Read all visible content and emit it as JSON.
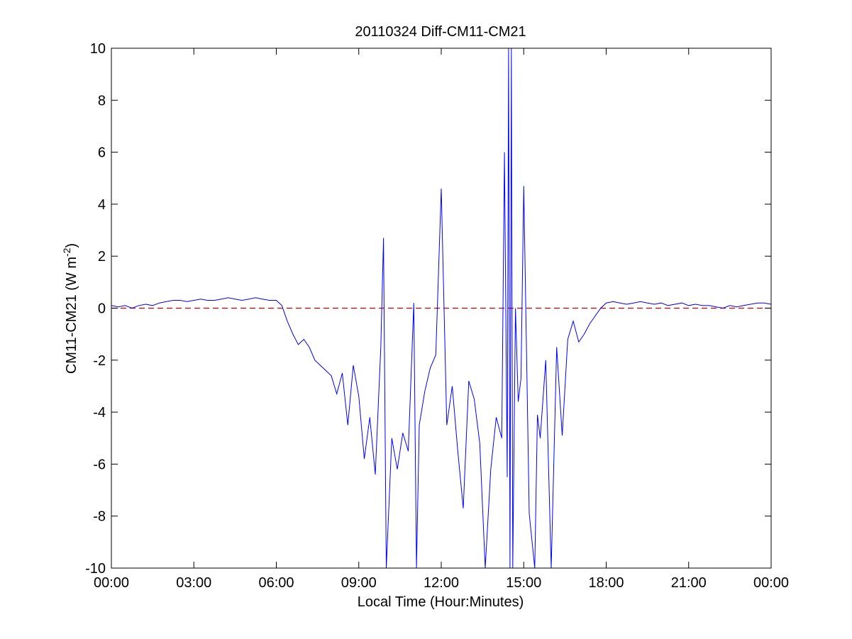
{
  "chart_data": {
    "type": "line",
    "title": "20110324 Diff-CM11-CM21",
    "xlabel": "Local Time (Hour:Minutes)",
    "ylabel": {
      "main": "CM11-CM21 (W m",
      "sup": "-2",
      "close": ")"
    },
    "xlim": [
      0,
      24
    ],
    "ylim": [
      -10,
      10
    ],
    "x_units": "hours",
    "x_tick_values": [
      0,
      3,
      6,
      9,
      12,
      15,
      18,
      21,
      24
    ],
    "x_tick_labels": [
      "00:00",
      "03:00",
      "06:00",
      "09:00",
      "12:00",
      "15:00",
      "18:00",
      "21:00",
      "00:00"
    ],
    "y_tick_values": [
      -10,
      -8,
      -6,
      -4,
      -2,
      0,
      2,
      4,
      6,
      8,
      10
    ],
    "y_tick_labels": [
      "-10",
      "-8",
      "-6",
      "-4",
      "-2",
      "0",
      "2",
      "4",
      "6",
      "8",
      "10"
    ],
    "grid": false,
    "reference_line": {
      "y": 0,
      "style": "dashed",
      "color": "#cc0000"
    },
    "series": [
      {
        "color": "#0000ff",
        "x": [
          0.0,
          0.25,
          0.5,
          0.75,
          1.0,
          1.25,
          1.5,
          1.75,
          2.0,
          2.25,
          2.5,
          2.75,
          3.0,
          3.25,
          3.5,
          3.75,
          4.0,
          4.25,
          4.5,
          4.75,
          5.0,
          5.25,
          5.5,
          5.75,
          6.0,
          6.2,
          6.4,
          6.6,
          6.8,
          7.0,
          7.2,
          7.4,
          7.6,
          7.8,
          8.0,
          8.2,
          8.4,
          8.6,
          8.8,
          9.0,
          9.2,
          9.4,
          9.6,
          9.8,
          9.9,
          10.0,
          10.2,
          10.4,
          10.6,
          10.8,
          11.0,
          11.1,
          11.2,
          11.4,
          11.6,
          11.8,
          12.0,
          12.2,
          12.4,
          12.6,
          12.8,
          13.0,
          13.2,
          13.4,
          13.6,
          13.8,
          14.0,
          14.2,
          14.3,
          14.4,
          14.45,
          14.5,
          14.55,
          14.6,
          14.7,
          14.8,
          14.9,
          15.0,
          15.2,
          15.4,
          15.5,
          15.6,
          15.8,
          16.0,
          16.2,
          16.4,
          16.6,
          16.8,
          17.0,
          17.2,
          17.4,
          17.6,
          17.8,
          18.0,
          18.25,
          18.5,
          18.75,
          19.0,
          19.25,
          19.5,
          19.75,
          20.0,
          20.25,
          20.5,
          20.75,
          21.0,
          21.25,
          21.5,
          21.75,
          22.0,
          22.25,
          22.5,
          22.75,
          23.0,
          23.25,
          23.5,
          23.75,
          24.0
        ],
        "y": [
          0.1,
          0.05,
          0.1,
          0.0,
          0.1,
          0.15,
          0.1,
          0.2,
          0.25,
          0.3,
          0.3,
          0.25,
          0.3,
          0.35,
          0.3,
          0.3,
          0.35,
          0.4,
          0.35,
          0.3,
          0.35,
          0.4,
          0.35,
          0.3,
          0.3,
          0.1,
          -0.5,
          -1.0,
          -1.4,
          -1.2,
          -1.5,
          -2.0,
          -2.2,
          -2.4,
          -2.6,
          -3.3,
          -2.5,
          -4.5,
          -2.2,
          -3.4,
          -5.8,
          -4.2,
          -6.4,
          -1.5,
          2.7,
          -10.0,
          -5.0,
          -6.2,
          -4.8,
          -5.5,
          0.2,
          -10.0,
          -4.5,
          -3.2,
          -2.3,
          -1.8,
          4.6,
          -4.5,
          -3.0,
          -5.5,
          -7.7,
          -2.8,
          -3.5,
          -5.2,
          -10.0,
          -6.2,
          -4.2,
          -5.0,
          6.0,
          -6.5,
          10.0,
          -10.0,
          10.0,
          -10.0,
          0.0,
          -3.6,
          -2.7,
          4.7,
          -7.9,
          -10.0,
          -4.1,
          -5.0,
          -2.0,
          -10.0,
          -1.5,
          -4.9,
          -1.2,
          -0.5,
          -1.3,
          -1.0,
          -0.6,
          -0.3,
          0.0,
          0.2,
          0.25,
          0.2,
          0.15,
          0.2,
          0.25,
          0.2,
          0.15,
          0.2,
          0.1,
          0.15,
          0.2,
          0.1,
          0.15,
          0.1,
          0.1,
          0.05,
          0.0,
          0.1,
          0.05,
          0.1,
          0.15,
          0.2,
          0.2,
          0.15
        ]
      }
    ]
  }
}
